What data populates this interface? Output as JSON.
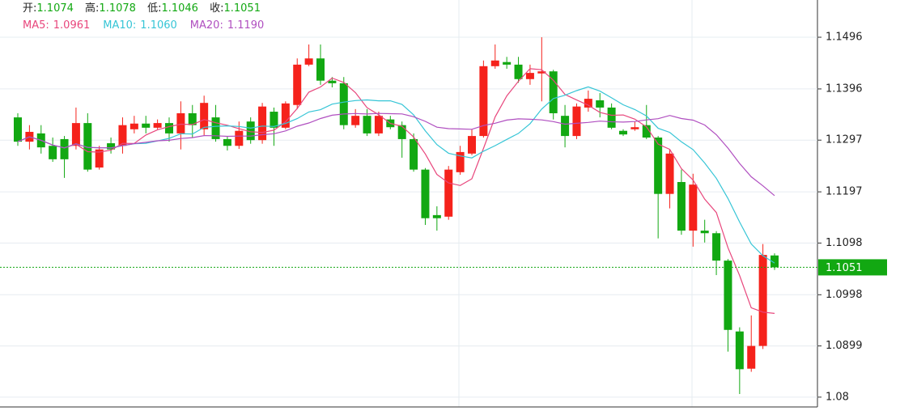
{
  "chart_data": {
    "type": "candlestick",
    "ohlc_labels": [
      "开:",
      "高:",
      "低:",
      "收:"
    ],
    "open": [
      1.1341,
      1.1294,
      1.131,
      1.1286,
      1.1299,
      1.1286,
      1.133,
      1.1244,
      1.1291,
      1.1286,
      1.1318,
      1.1329,
      1.1321,
      1.133,
      1.131,
      1.1349,
      1.1318,
      1.1341,
      1.1299,
      1.1286,
      1.1333,
      1.1297,
      1.1352,
      1.1321,
      1.1365,
      1.1443,
      1.1455,
      1.1412,
      1.1407,
      1.1326,
      1.1344,
      1.131,
      1.1337,
      1.1326,
      1.1299,
      1.124,
      1.1152,
      1.1149,
      1.1235,
      1.1271,
      1.1305,
      1.144,
      1.1448,
      1.1443,
      1.1415,
      1.1426,
      1.143,
      1.1344,
      1.1305,
      1.136,
      1.1374,
      1.136,
      1.1315,
      1.1318,
      1.1326,
      1.1302,
      1.1193,
      1.1216,
      1.1122,
      1.1122,
      1.1117,
      1.1064,
      1.0927,
      1.0855,
      1.0899,
      1.1074
    ],
    "high": [
      1.1349,
      1.1326,
      1.1326,
      1.1302,
      1.1305,
      1.136,
      1.1349,
      1.1286,
      1.1302,
      1.1341,
      1.1344,
      1.1344,
      1.1337,
      1.1341,
      1.1372,
      1.1365,
      1.1383,
      1.1365,
      1.1305,
      1.1333,
      1.1341,
      1.1369,
      1.136,
      1.1372,
      1.1455,
      1.1482,
      1.1482,
      1.1419,
      1.1419,
      1.1357,
      1.1357,
      1.1352,
      1.1344,
      1.1333,
      1.131,
      1.1243,
      1.1169,
      1.1247,
      1.1286,
      1.1318,
      1.1451,
      1.1482,
      1.1458,
      1.1458,
      1.1443,
      1.1496,
      1.1433,
      1.1365,
      1.1368,
      1.1393,
      1.1388,
      1.1368,
      1.1318,
      1.1333,
      1.1365,
      1.1305,
      1.1279,
      1.124,
      1.1232,
      1.1143,
      1.1121,
      1.1067,
      1.0935,
      1.0958,
      1.1096,
      1.1078
    ],
    "low": [
      1.1286,
      1.1279,
      1.1271,
      1.1255,
      1.1224,
      1.1279,
      1.1236,
      1.124,
      1.1271,
      1.1271,
      1.131,
      1.131,
      1.1318,
      1.1294,
      1.1279,
      1.1302,
      1.1305,
      1.1294,
      1.1277,
      1.128,
      1.129,
      1.129,
      1.1286,
      1.1318,
      1.1357,
      1.144,
      1.1404,
      1.1399,
      1.1318,
      1.1321,
      1.1305,
      1.1305,
      1.1318,
      1.1263,
      1.1236,
      1.1133,
      1.1122,
      1.1143,
      1.123,
      1.1268,
      1.1302,
      1.1435,
      1.1435,
      1.1408,
      1.1404,
      1.1372,
      1.1337,
      1.1283,
      1.1299,
      1.1352,
      1.1341,
      1.1318,
      1.1305,
      1.1315,
      1.1299,
      1.1107,
      1.1165,
      1.1114,
      1.1091,
      1.1099,
      1.1036,
      1.0888,
      1.0806,
      1.0849,
      1.0893,
      1.1046
    ],
    "close": [
      1.1294,
      1.1313,
      1.1283,
      1.126,
      1.126,
      1.133,
      1.124,
      1.1279,
      1.1279,
      1.1326,
      1.1329,
      1.1321,
      1.133,
      1.131,
      1.1349,
      1.1326,
      1.1369,
      1.1299,
      1.1286,
      1.1315,
      1.1297,
      1.1362,
      1.1321,
      1.1368,
      1.1443,
      1.1455,
      1.1412,
      1.1407,
      1.1326,
      1.1344,
      1.131,
      1.1344,
      1.1322,
      1.1299,
      1.124,
      1.1146,
      1.1146,
      1.124,
      1.1274,
      1.1305,
      1.144,
      1.1451,
      1.1443,
      1.1415,
      1.1427,
      1.143,
      1.1349,
      1.1305,
      1.1362,
      1.1377,
      1.136,
      1.1321,
      1.1308,
      1.1322,
      1.1302,
      1.1193,
      1.1271,
      1.1122,
      1.1211,
      1.1117,
      1.1064,
      1.093,
      1.0854,
      1.0899,
      1.1075,
      1.1051
    ],
    "up_color": "#f5221b",
    "down_color": "#12a812",
    "moving_averages": [
      {
        "name": "MA5:",
        "period": 5,
        "color": "#e8467c",
        "value_label": "1.0961"
      },
      {
        "name": "MA10:",
        "period": 10,
        "color": "#36c5d6",
        "value_label": "1.1060"
      },
      {
        "name": "MA20:",
        "period": 20,
        "color": "#b04fc0",
        "value_label": "1.1190"
      }
    ],
    "ylim": [
      1.0781,
      1.1568
    ],
    "yticks": [
      1.1496,
      1.1396,
      1.1297,
      1.1197,
      1.1098,
      1.0998,
      1.0899,
      1.08
    ],
    "grid": true
  }
}
